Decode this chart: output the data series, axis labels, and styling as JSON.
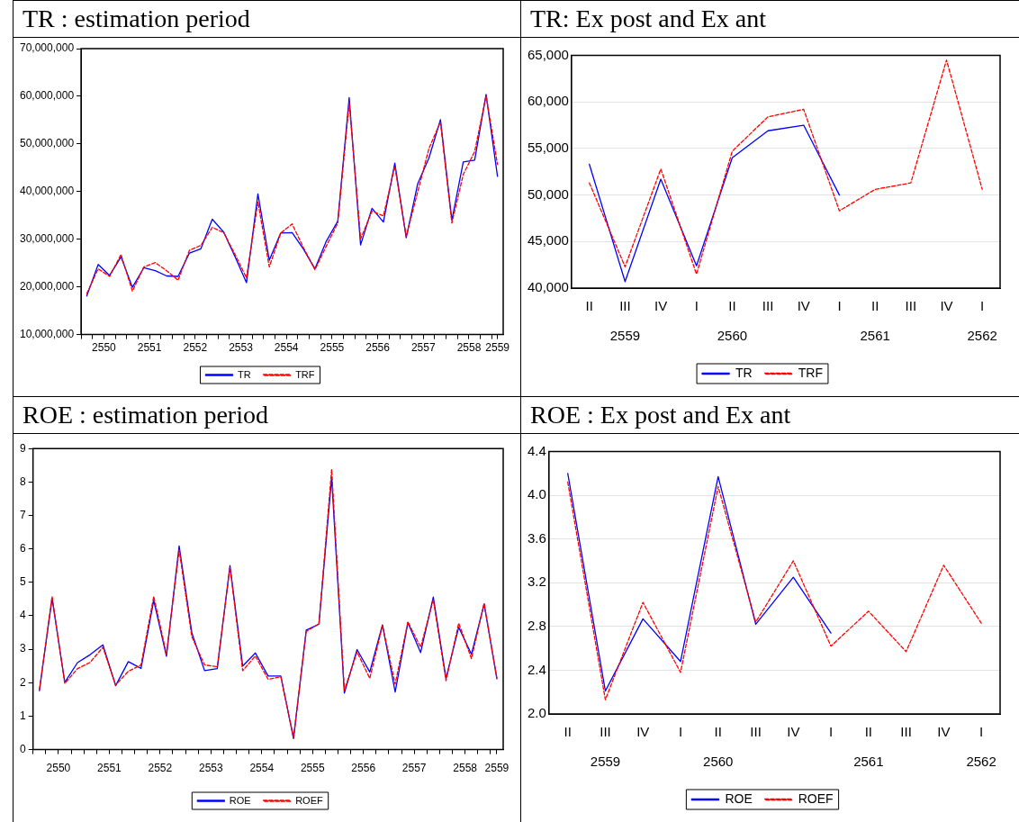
{
  "chart_data": [
    {
      "type": "line",
      "title": "TR : estimation period",
      "legend": "bottom",
      "grid": false,
      "marker": "none",
      "x": [
        2550.125,
        2550.375,
        2550.625,
        2550.875,
        2551.125,
        2551.375,
        2551.625,
        2551.875,
        2552.125,
        2552.375,
        2552.625,
        2552.875,
        2553.125,
        2553.375,
        2553.625,
        2553.875,
        2554.125,
        2554.375,
        2554.625,
        2554.875,
        2555.125,
        2555.375,
        2555.625,
        2555.875,
        2556.125,
        2556.375,
        2556.625,
        2556.875,
        2557.125,
        2557.375,
        2557.625,
        2557.875,
        2558.125,
        2558.375,
        2558.625,
        2558.875,
        2559.125
      ],
      "xlim": [
        2550,
        2559.25
      ],
      "xticks": [
        {
          "value": 2550,
          "label": null
        },
        {
          "value": 2550.25,
          "label": null
        },
        {
          "value": 2550.5,
          "label": "2550"
        },
        {
          "value": 2550.75,
          "label": null
        },
        {
          "value": 2551,
          "label": null
        },
        {
          "value": 2551.25,
          "label": null
        },
        {
          "value": 2551.5,
          "label": "2551"
        },
        {
          "value": 2551.75,
          "label": null
        },
        {
          "value": 2552,
          "label": null
        },
        {
          "value": 2552.25,
          "label": null
        },
        {
          "value": 2552.5,
          "label": "2552"
        },
        {
          "value": 2552.75,
          "label": null
        },
        {
          "value": 2553,
          "label": null
        },
        {
          "value": 2553.25,
          "label": null
        },
        {
          "value": 2553.5,
          "label": "2553"
        },
        {
          "value": 2553.75,
          "label": null
        },
        {
          "value": 2554,
          "label": null
        },
        {
          "value": 2554.25,
          "label": null
        },
        {
          "value": 2554.5,
          "label": "2554"
        },
        {
          "value": 2554.75,
          "label": null
        },
        {
          "value": 2555,
          "label": null
        },
        {
          "value": 2555.25,
          "label": null
        },
        {
          "value": 2555.5,
          "label": "2555"
        },
        {
          "value": 2555.75,
          "label": null
        },
        {
          "value": 2556,
          "label": null
        },
        {
          "value": 2556.25,
          "label": null
        },
        {
          "value": 2556.5,
          "label": "2556"
        },
        {
          "value": 2556.75,
          "label": null
        },
        {
          "value": 2557,
          "label": null
        },
        {
          "value": 2557.25,
          "label": null
        },
        {
          "value": 2557.5,
          "label": "2557"
        },
        {
          "value": 2557.75,
          "label": null
        },
        {
          "value": 2558,
          "label": null
        },
        {
          "value": 2558.25,
          "label": null
        },
        {
          "value": 2558.5,
          "label": "2558"
        },
        {
          "value": 2558.75,
          "label": null
        },
        {
          "value": 2559,
          "label": null
        },
        {
          "value": 2559.125,
          "label": "2559"
        }
      ],
      "ylim": [
        10000000,
        70000000
      ],
      "yticks": [
        {
          "value": 10000000,
          "label": "10,000,000"
        },
        {
          "value": 20000000,
          "label": "20,000,000"
        },
        {
          "value": 30000000,
          "label": "30,000,000"
        },
        {
          "value": 40000000,
          "label": "40,000,000"
        },
        {
          "value": 50000000,
          "label": "50,000,000"
        },
        {
          "value": 60000000,
          "label": "60,000,000"
        },
        {
          "value": 70000000,
          "label": "70,000,000"
        }
      ],
      "series": [
        {
          "name": "TR",
          "color": "#0000ff",
          "line_style": "solid",
          "values": [
            18100000,
            24700000,
            22400000,
            26300000,
            19900000,
            24000000,
            23400000,
            22300000,
            22200000,
            27100000,
            28000000,
            34200000,
            31500000,
            26300000,
            20900000,
            39500000,
            25600000,
            31300000,
            31400000,
            27900000,
            23800000,
            29600000,
            33800000,
            59700000,
            28800000,
            36500000,
            33600000,
            46000000,
            30300000,
            41600000,
            47100000,
            55100000,
            34000000,
            46200000,
            46600000,
            60400000,
            43200000
          ]
        },
        {
          "name": "TRF",
          "color": "#ff0000",
          "line_style": "dashed",
          "values": [
            18600000,
            23800000,
            22200000,
            26800000,
            19100000,
            24200000,
            25100000,
            23400000,
            21400000,
            27700000,
            28700000,
            32500000,
            31400000,
            26800000,
            21900000,
            37800000,
            24200000,
            31300000,
            33200000,
            28200000,
            23600000,
            28600000,
            33400000,
            58700000,
            30100000,
            35900000,
            34900000,
            45300000,
            30600000,
            39900000,
            49100000,
            54600000,
            33400000,
            43600000,
            48400000,
            60100000,
            45700000
          ]
        }
      ]
    },
    {
      "type": "line",
      "title": "TR: Ex post and Ex ant",
      "legend": "bottom",
      "grid": "y",
      "marker": "none",
      "categories": [
        "II",
        "III\n2559",
        "IV",
        "I",
        "II\n2560",
        "III",
        "IV",
        "I",
        "II\n2561",
        "III",
        "IV",
        "I\n2562"
      ],
      "ylim": [
        40000,
        65000
      ],
      "yticks": [
        {
          "value": 40000,
          "label": "40,000"
        },
        {
          "value": 45000,
          "label": "45,000"
        },
        {
          "value": 50000,
          "label": "50,000"
        },
        {
          "value": 55000,
          "label": "55,000"
        },
        {
          "value": 60000,
          "label": "60,000"
        },
        {
          "value": 65000,
          "label": "65,000"
        }
      ],
      "series": [
        {
          "name": "TR",
          "color": "#0000ff",
          "line_style": "solid",
          "values": [
            53300,
            40700,
            51700,
            42400,
            54000,
            56900,
            57500,
            50000,
            null,
            null,
            null,
            null
          ]
        },
        {
          "name": "TRF",
          "color": "#ff0000",
          "line_style": "dashed",
          "values": [
            51300,
            42300,
            52800,
            41500,
            54700,
            58400,
            59200,
            48300,
            50600,
            51300,
            64500,
            50600
          ]
        }
      ]
    },
    {
      "type": "line",
      "title": "ROE : estimation period",
      "legend": "bottom",
      "grid": false,
      "marker": "none",
      "x": [
        2550.125,
        2550.375,
        2550.625,
        2550.875,
        2551.125,
        2551.375,
        2551.625,
        2551.875,
        2552.125,
        2552.375,
        2552.625,
        2552.875,
        2553.125,
        2553.375,
        2553.625,
        2553.875,
        2554.125,
        2554.375,
        2554.625,
        2554.875,
        2555.125,
        2555.375,
        2555.625,
        2555.875,
        2556.125,
        2556.375,
        2556.625,
        2556.875,
        2557.125,
        2557.375,
        2557.625,
        2557.875,
        2558.125,
        2558.375,
        2558.625,
        2558.875,
        2559.125
      ],
      "xlim": [
        2550,
        2559.25
      ],
      "xticks": [
        {
          "value": 2550,
          "label": null
        },
        {
          "value": 2550.25,
          "label": null
        },
        {
          "value": 2550.5,
          "label": "2550"
        },
        {
          "value": 2550.75,
          "label": null
        },
        {
          "value": 2551,
          "label": null
        },
        {
          "value": 2551.25,
          "label": null
        },
        {
          "value": 2551.5,
          "label": "2551"
        },
        {
          "value": 2551.75,
          "label": null
        },
        {
          "value": 2552,
          "label": null
        },
        {
          "value": 2552.25,
          "label": null
        },
        {
          "value": 2552.5,
          "label": "2552"
        },
        {
          "value": 2552.75,
          "label": null
        },
        {
          "value": 2553,
          "label": null
        },
        {
          "value": 2553.25,
          "label": null
        },
        {
          "value": 2553.5,
          "label": "2553"
        },
        {
          "value": 2553.75,
          "label": null
        },
        {
          "value": 2554,
          "label": null
        },
        {
          "value": 2554.25,
          "label": null
        },
        {
          "value": 2554.5,
          "label": "2554"
        },
        {
          "value": 2554.75,
          "label": null
        },
        {
          "value": 2555,
          "label": null
        },
        {
          "value": 2555.25,
          "label": null
        },
        {
          "value": 2555.5,
          "label": "2555"
        },
        {
          "value": 2555.75,
          "label": null
        },
        {
          "value": 2556,
          "label": null
        },
        {
          "value": 2556.25,
          "label": null
        },
        {
          "value": 2556.5,
          "label": "2556"
        },
        {
          "value": 2556.75,
          "label": null
        },
        {
          "value": 2557,
          "label": null
        },
        {
          "value": 2557.25,
          "label": null
        },
        {
          "value": 2557.5,
          "label": "2557"
        },
        {
          "value": 2557.75,
          "label": null
        },
        {
          "value": 2558,
          "label": null
        },
        {
          "value": 2558.25,
          "label": null
        },
        {
          "value": 2558.5,
          "label": "2558"
        },
        {
          "value": 2558.75,
          "label": null
        },
        {
          "value": 2559,
          "label": null
        },
        {
          "value": 2559.125,
          "label": "2559"
        }
      ],
      "ylim": [
        0,
        9
      ],
      "yticks": [
        0,
        1,
        2,
        3,
        4,
        5,
        6,
        7,
        8,
        9
      ],
      "series": [
        {
          "name": "ROE",
          "color": "#0000ff",
          "line_style": "solid",
          "values": [
            1.76,
            4.52,
            2.01,
            2.6,
            2.84,
            3.13,
            1.91,
            2.63,
            2.43,
            4.46,
            2.79,
            6.09,
            3.49,
            2.36,
            2.42,
            5.5,
            2.5,
            2.89,
            2.2,
            2.2,
            0.33,
            3.57,
            3.75,
            8.13,
            1.69,
            2.99,
            2.32,
            3.73,
            1.72,
            3.8,
            2.9,
            4.56,
            2.13,
            3.66,
            2.85,
            4.35,
            2.12
          ]
        },
        {
          "name": "ROEF",
          "color": "#ff0000",
          "line_style": "dashed",
          "values": [
            1.78,
            4.58,
            1.98,
            2.42,
            2.61,
            3.06,
            1.93,
            2.34,
            2.53,
            4.58,
            2.85,
            5.97,
            3.37,
            2.53,
            2.48,
            5.45,
            2.36,
            2.8,
            2.1,
            2.18,
            0.36,
            3.53,
            3.76,
            8.38,
            1.77,
            2.92,
            2.13,
            3.71,
            1.96,
            3.82,
            3.06,
            4.48,
            2.06,
            3.78,
            2.72,
            4.38,
            2.14
          ]
        }
      ]
    },
    {
      "type": "line",
      "title": "ROE : Ex post and Ex ant",
      "legend": "bottom",
      "grid": "y",
      "marker": "none",
      "categories": [
        "II",
        "III\n2559",
        "IV",
        "I",
        "II\n2560",
        "III",
        "IV",
        "I",
        "II\n2561",
        "III",
        "IV",
        "I\n2562"
      ],
      "ylim": [
        2,
        4.4
      ],
      "yticks": [
        {
          "value": 2,
          "label": "2.0"
        },
        2.4,
        2.8,
        3.2,
        3.6,
        {
          "value": 4,
          "label": "4.0"
        },
        4.4
      ],
      "series": [
        {
          "name": "ROE",
          "color": "#0000ff",
          "line_style": "solid",
          "values": [
            4.2,
            2.21,
            2.87,
            2.48,
            4.17,
            2.82,
            3.25,
            2.74,
            null,
            null,
            null,
            null
          ]
        },
        {
          "name": "ROEF",
          "color": "#ff0000",
          "line_style": "dashed",
          "values": [
            4.12,
            2.13,
            3.02,
            2.38,
            4.08,
            2.84,
            3.4,
            2.62,
            2.94,
            2.57,
            3.36,
            2.83
          ]
        }
      ]
    }
  ]
}
